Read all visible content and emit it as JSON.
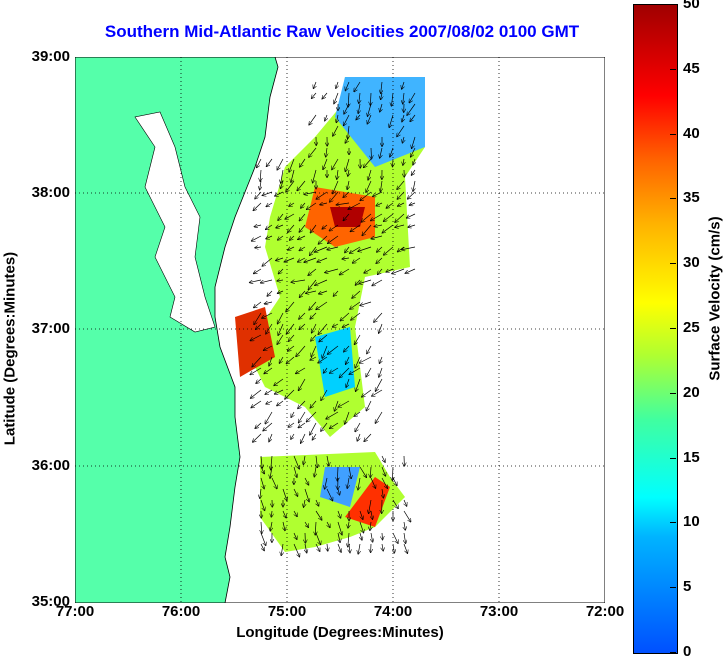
{
  "title": "Southern Mid-Atlantic Raw Velocities 2007/08/02 0100 GMT",
  "xlabel": "Longitude (Degrees:Minutes)",
  "ylabel": "Latitude (Degrees:Minutes)",
  "x_ticks": [
    "77:00",
    "76:00",
    "75:00",
    "74:00",
    "73:00",
    "72:00"
  ],
  "y_ticks": [
    "39:00",
    "38:00",
    "37:00",
    "36:00",
    "35:00"
  ],
  "colorbar": {
    "label": "Surface Velocity (cm/s)",
    "ticks": [
      "50",
      "45",
      "40",
      "35",
      "30",
      "25",
      "20",
      "15",
      "10",
      "5",
      "0"
    ]
  },
  "colors": {
    "land": "#55ffaa",
    "title": "#0000ff"
  }
}
